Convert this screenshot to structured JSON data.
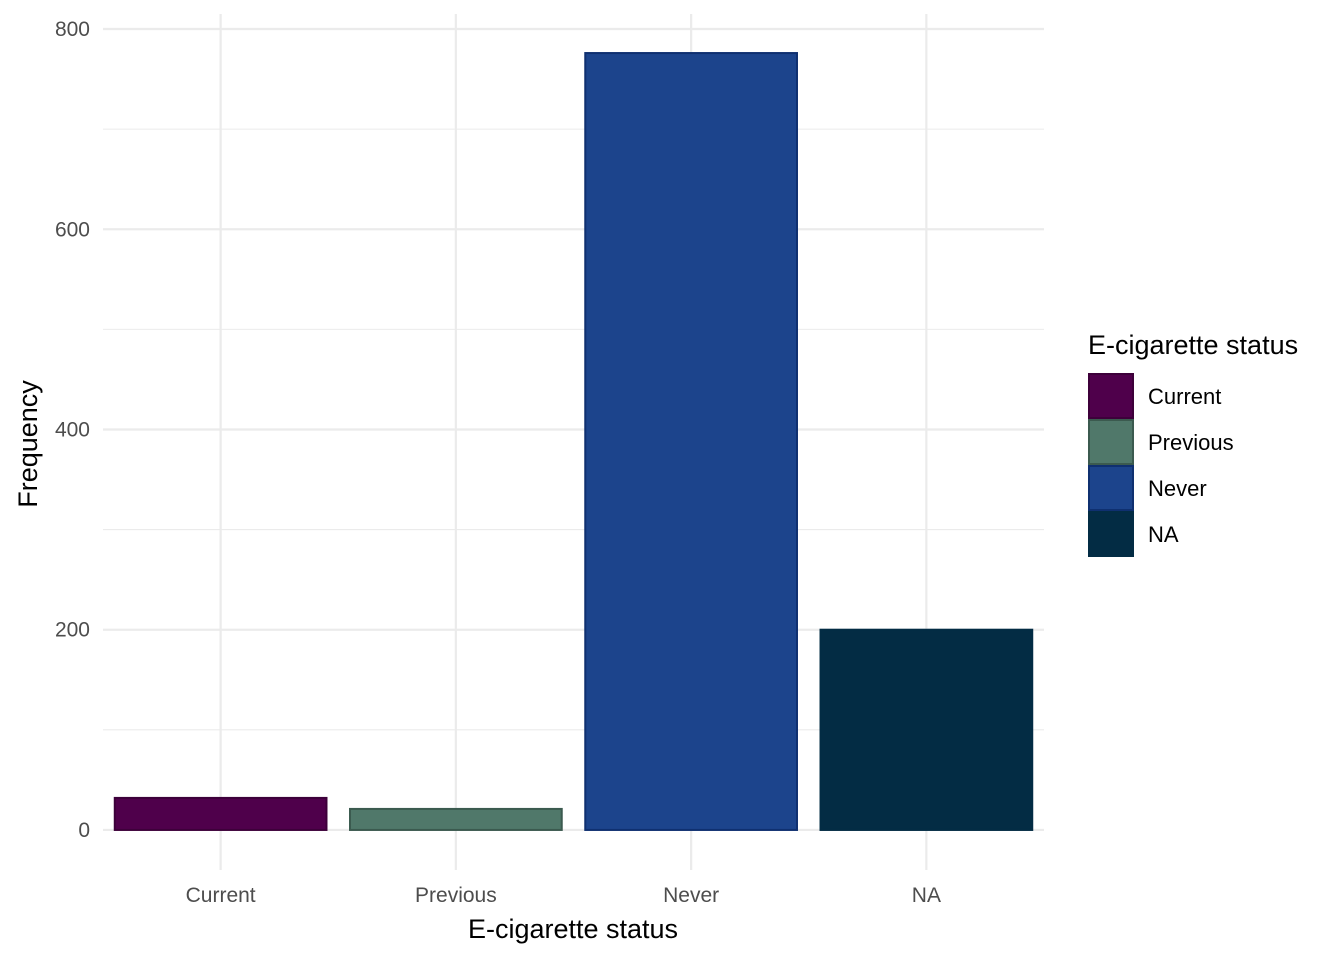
{
  "chart_data": {
    "type": "bar",
    "categories": [
      "Current",
      "Previous",
      "Never",
      "NA"
    ],
    "values": [
      32,
      21,
      776,
      200
    ],
    "colors": [
      "#4f004b",
      "#50786a",
      "#1c448c",
      "#032c44"
    ],
    "border_colors": [
      "#3d003a",
      "#3b5a4f",
      "#0f3070",
      "#032c44"
    ],
    "title": "",
    "xlabel": "E-cigarette status",
    "ylabel": "Frequency",
    "ylim": [
      -40,
      815
    ],
    "yticks": [
      0,
      200,
      400,
      600,
      800
    ],
    "grid": true,
    "legend": {
      "title": "E-cigarette status",
      "position": "right",
      "entries": [
        "Current",
        "Previous",
        "Never",
        "NA"
      ]
    }
  }
}
